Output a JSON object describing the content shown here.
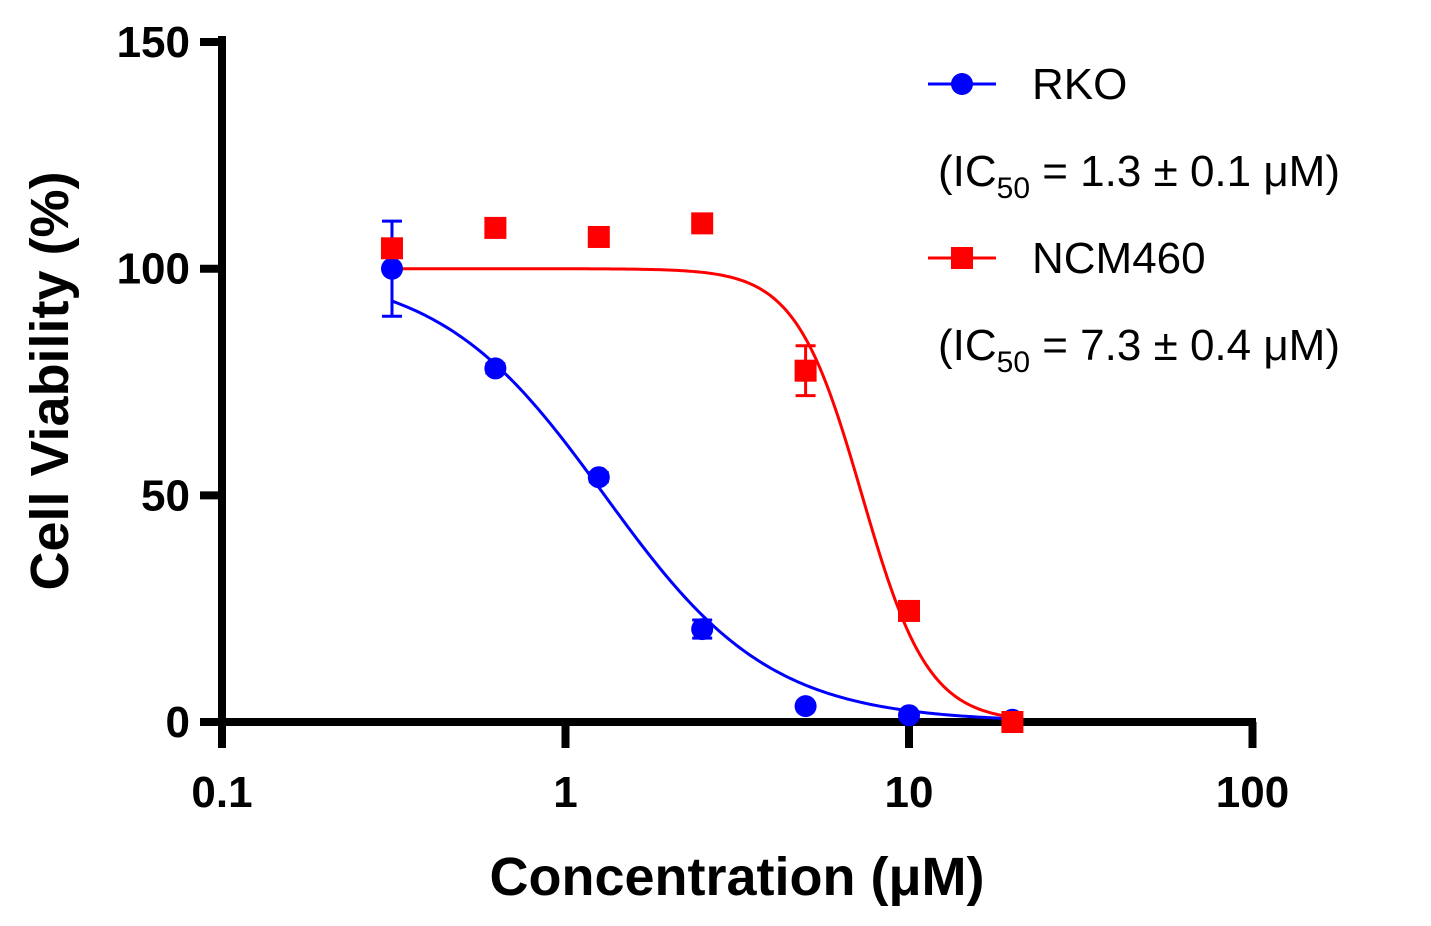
{
  "chart_data": {
    "type": "scatter",
    "title": "",
    "xlabel": "Concentration (μM)",
    "ylabel": "Cell Viability (%)",
    "xscale": "log",
    "xlim": [
      0.1,
      100
    ],
    "ylim": [
      0,
      150
    ],
    "xticks": [
      "0.1",
      "1",
      "10",
      "100"
    ],
    "xtick_values": [
      0.1,
      1,
      10,
      100
    ],
    "yticks": [
      "0",
      "50",
      "100",
      "150"
    ],
    "ytick_values": [
      0,
      50,
      100,
      150
    ],
    "legend_position": "top-right",
    "series": [
      {
        "name": "RKO",
        "ic50_prefix": "(IC",
        "ic50_sub": "50",
        "ic50_suffix": " = 1.3 ± 0.1 μM)",
        "color": "#0000ff",
        "marker": "circle",
        "x": [
          0.3125,
          0.625,
          1.25,
          2.5,
          5,
          10,
          20
        ],
        "y": [
          100,
          78,
          54,
          20.5,
          3.5,
          1.5,
          0.5
        ],
        "err": [
          10.5,
          1,
          1,
          2,
          0.5,
          0.5,
          0.5
        ],
        "fit": {
          "top": 100,
          "bottom": 0,
          "ic50": 1.3,
          "hill": 1.8
        }
      },
      {
        "name": "NCM460",
        "ic50_prefix": "(IC",
        "ic50_sub": "50",
        "ic50_suffix": " = 7.3 ± 0.4 μM)",
        "color": "#ff0000",
        "marker": "square",
        "x": [
          0.3125,
          0.625,
          1.25,
          2.5,
          5,
          10,
          20
        ],
        "y": [
          104.5,
          109,
          107,
          110,
          77.5,
          24.5,
          0
        ],
        "err": [
          2,
          1,
          2,
          1.5,
          5.5,
          1,
          0.5
        ],
        "fit": {
          "top": 100,
          "bottom": 0,
          "ic50": 7.3,
          "hill": 4.5
        }
      }
    ]
  }
}
